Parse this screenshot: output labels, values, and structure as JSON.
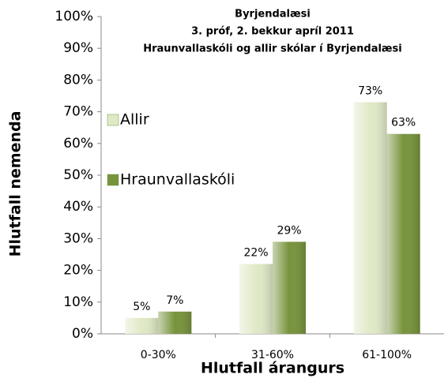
{
  "chart_data": {
    "type": "bar",
    "title": [
      "Byrjendalæsi",
      "3. próf, 2. bekkur apríl 2011",
      "Hraunvallaskóli og allir skólar í Byrjendalæsi"
    ],
    "x_label": "Hlutfall árangurs",
    "y_label": "Hlutfall nemenda",
    "categories": [
      "0-30%",
      "31-60%",
      "61-100%"
    ],
    "series": [
      {
        "name": "Allir",
        "color": "#dfe9c6",
        "values": [
          5,
          22,
          73
        ],
        "value_labels": [
          "5%",
          "22%",
          "73%"
        ]
      },
      {
        "name": "Hraunvallaskóli",
        "color": "#77933c",
        "values": [
          7,
          29,
          63
        ],
        "value_labels": [
          "7%",
          "29%",
          "63%"
        ]
      }
    ],
    "ylim": [
      0,
      100
    ],
    "yticks": [
      {
        "value": 0,
        "label": "0%"
      },
      {
        "value": 10,
        "label": "10%"
      },
      {
        "value": 20,
        "label": "20%"
      },
      {
        "value": 30,
        "label": "30%"
      },
      {
        "value": 40,
        "label": "40%"
      },
      {
        "value": 50,
        "label": "50%"
      },
      {
        "value": 60,
        "label": "60%"
      },
      {
        "value": 70,
        "label": "70%"
      },
      {
        "value": 80,
        "label": "80%"
      },
      {
        "value": 90,
        "label": "90%"
      },
      {
        "value": 100,
        "label": "100%"
      }
    ],
    "legend": "left",
    "grid": false
  }
}
